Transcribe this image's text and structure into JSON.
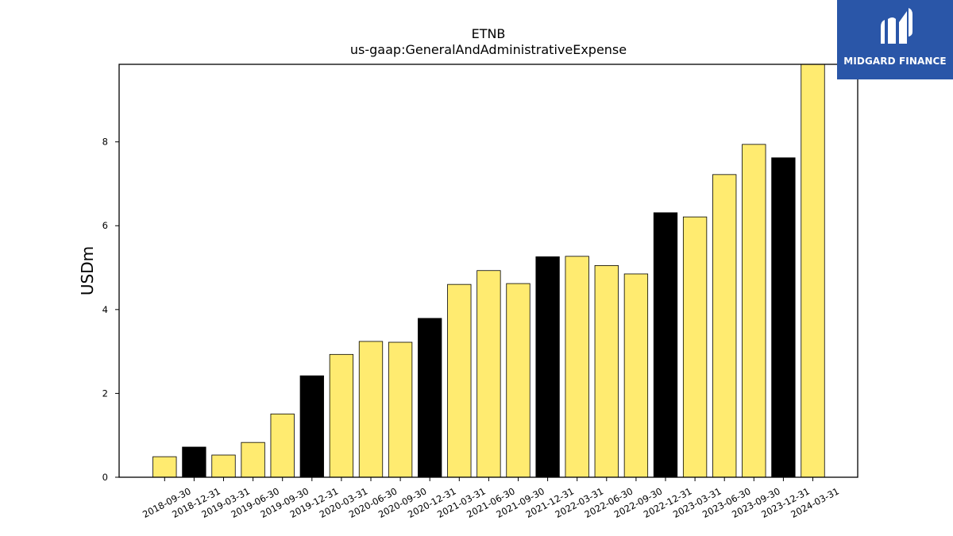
{
  "chart_data": {
    "type": "bar",
    "title": "ETNB",
    "subtitle": "us-gaap:GeneralAndAdministrativeExpense",
    "xlabel": "",
    "ylabel": "USDm",
    "ylim": [
      0,
      9.85
    ],
    "yticks": [
      0,
      2,
      4,
      6,
      8
    ],
    "grid": false,
    "categories": [
      "2018-09-30",
      "2018-12-31",
      "2019-03-31",
      "2019-06-30",
      "2019-09-30",
      "2019-12-31",
      "2020-03-31",
      "2020-06-30",
      "2020-09-30",
      "2020-12-31",
      "2021-03-31",
      "2021-06-30",
      "2021-09-30",
      "2021-12-31",
      "2022-03-31",
      "2022-06-30",
      "2022-09-30",
      "2022-12-31",
      "2023-03-31",
      "2023-06-30",
      "2023-09-30",
      "2023-12-31",
      "2024-03-31"
    ],
    "values": [
      0.49,
      0.72,
      0.53,
      0.83,
      1.51,
      2.42,
      2.93,
      3.24,
      3.22,
      3.79,
      4.6,
      4.93,
      4.62,
      5.26,
      5.27,
      5.05,
      4.85,
      6.31,
      6.21,
      7.22,
      7.94,
      7.62,
      9.85
    ],
    "bar_colors": [
      "#ffeb70",
      "#000000",
      "#ffeb70",
      "#ffeb70",
      "#ffeb70",
      "#000000",
      "#ffeb70",
      "#ffeb70",
      "#ffeb70",
      "#000000",
      "#ffeb70",
      "#ffeb70",
      "#ffeb70",
      "#000000",
      "#ffeb70",
      "#ffeb70",
      "#ffeb70",
      "#000000",
      "#ffeb70",
      "#ffeb70",
      "#ffeb70",
      "#000000",
      "#ffeb70"
    ]
  },
  "logo": {
    "text": "MIDGARD FINANCE",
    "background": "#2a56a8",
    "icon": "midgard-logo-icon"
  }
}
